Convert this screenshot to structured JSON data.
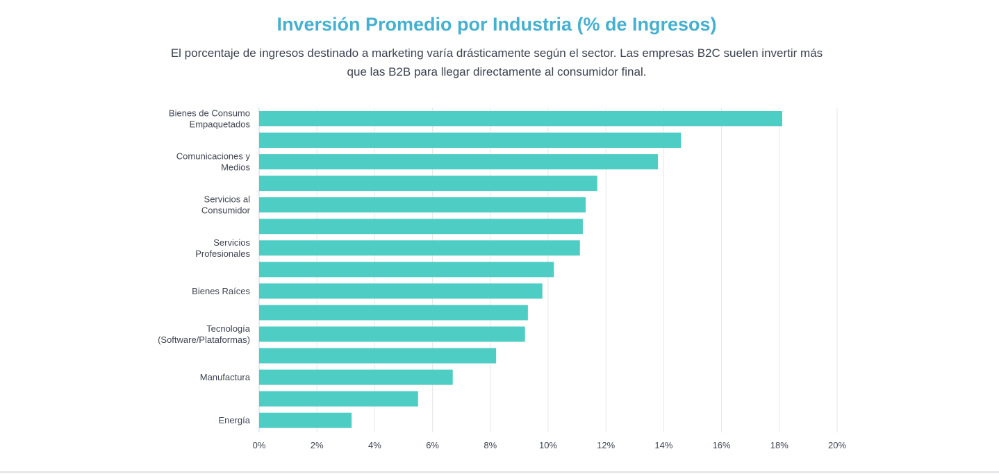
{
  "header": {
    "title": "Inversión Promedio por Industria (% de Ingresos)",
    "subtitle": "El porcentaje de ingresos destinado a marketing varía drásticamente según el sector. Las empresas B2C suelen invertir más que las B2B para llegar directamente al consumidor final."
  },
  "chart_data": {
    "type": "bar",
    "orientation": "horizontal",
    "title": "Inversión Promedio por Industria (% de Ingresos)",
    "categories": [
      [
        "Bienes de Consumo",
        "Empaquetados"
      ],
      [],
      [
        "Comunicaciones y",
        "Medios"
      ],
      [],
      [
        "Servicios al",
        "Consumidor"
      ],
      [],
      [
        "Servicios",
        "Profesionales"
      ],
      [],
      [
        "Bienes Raíces"
      ],
      [],
      [
        "Tecnología",
        "(Software/Plataformas)"
      ],
      [],
      [
        "Manufactura"
      ],
      [],
      [
        "Energía"
      ]
    ],
    "values": [
      18.1,
      14.6,
      13.8,
      11.7,
      11.3,
      11.2,
      11.1,
      10.2,
      9.8,
      9.3,
      9.2,
      8.2,
      6.7,
      5.5,
      3.2
    ],
    "xlim": [
      0,
      20
    ],
    "xticks": [
      "0%",
      "2%",
      "4%",
      "6%",
      "8%",
      "10%",
      "12%",
      "14%",
      "16%",
      "18%",
      "20%"
    ],
    "grid": true,
    "bar_color": "#4ecdc4",
    "grid_color": "#e5e7eb",
    "label_color": "#3f4451"
  }
}
